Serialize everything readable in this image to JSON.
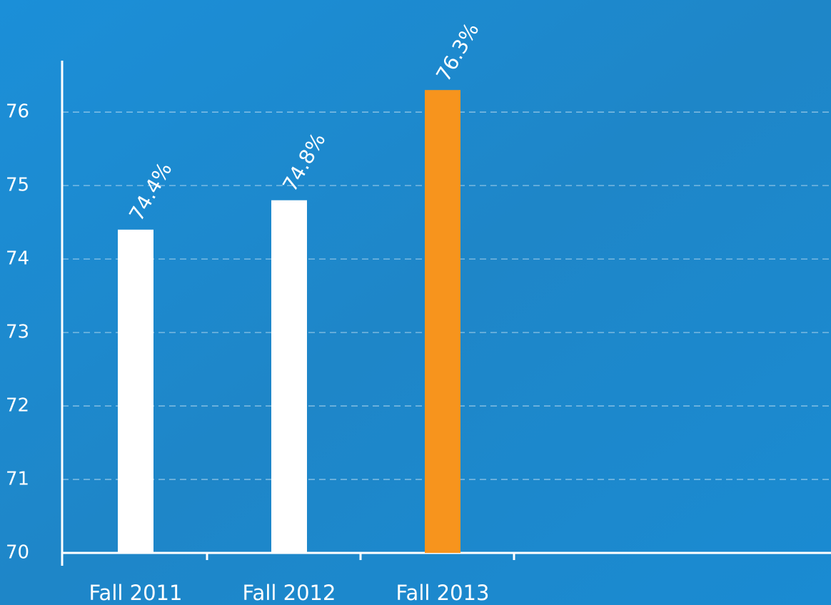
{
  "chart_data": {
    "type": "bar",
    "categories": [
      "Fall 2011",
      "Fall 2012",
      "Fall 2013"
    ],
    "values": [
      74.4,
      74.8,
      76.3
    ],
    "value_labels": [
      "74.4%",
      "74.8%",
      "76.3%"
    ],
    "colors": [
      "#ffffff",
      "#ffffff",
      "#f7941d"
    ],
    "ylim": [
      70,
      76.7
    ],
    "yticks": [
      70,
      71,
      72,
      73,
      74,
      75,
      76
    ],
    "grid": true
  }
}
